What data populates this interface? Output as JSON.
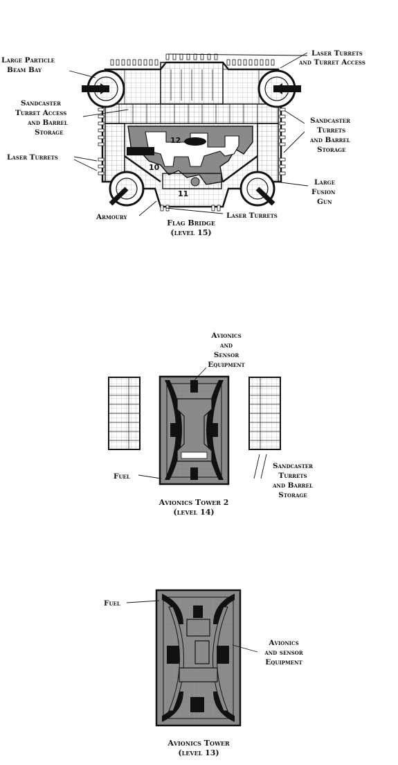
{
  "colors": {
    "ink": "#111111",
    "floor": "#ffffff",
    "fill": "#8a8a8a",
    "dark": "#1a1a1a"
  },
  "level15": {
    "caption_line1": "Flag Bridge",
    "caption_line2": "(level 15)",
    "labels": {
      "large_particle_beam_bay_1": "Large Particle",
      "large_particle_beam_bay_2": "Beam Bay",
      "laser_turrets_access_1": "Laser Turrets",
      "laser_turrets_access_2": "and Turret Access",
      "sandcaster_access_1": "Sandcaster",
      "sandcaster_access_2": "Turret Access",
      "sandcaster_access_3": "and Barrel",
      "sandcaster_access_4": "Storage",
      "sandcaster_turrets_1": "Sandcaster",
      "sandcaster_turrets_2": "Turrets",
      "sandcaster_turrets_3": "and Barrel",
      "sandcaster_turrets_4": "Storage",
      "laser_turrets_left": "Laser Turrets",
      "large_fusion_gun_1": "Large",
      "large_fusion_gun_2": "Fusion",
      "large_fusion_gun_3": "Gun",
      "armoury": "Armoury",
      "laser_turrets_bottom": "Laser Turrets"
    },
    "room_numbers": {
      "r10": "10",
      "r11": "11",
      "r12": "12"
    }
  },
  "level14": {
    "caption_line1": "Avionics Tower 2",
    "caption_line2": "(level 14)",
    "labels": {
      "avionics_1": "Avionics",
      "avionics_2": "and",
      "avionics_3": "Sensor",
      "avionics_4": "Equipment",
      "fuel": "Fuel",
      "sandcaster_1": "Sandcaster",
      "sandcaster_2": "Turrets",
      "sandcaster_3": "and Barrel",
      "sandcaster_4": "Storage"
    }
  },
  "level13": {
    "caption_line1": "Avionics Tower",
    "caption_line2": "(level 13)",
    "labels": {
      "fuel": "Fuel",
      "avionics_1": "Avionics",
      "avionics_2": "and sensor",
      "avionics_3": "Equipment"
    }
  }
}
